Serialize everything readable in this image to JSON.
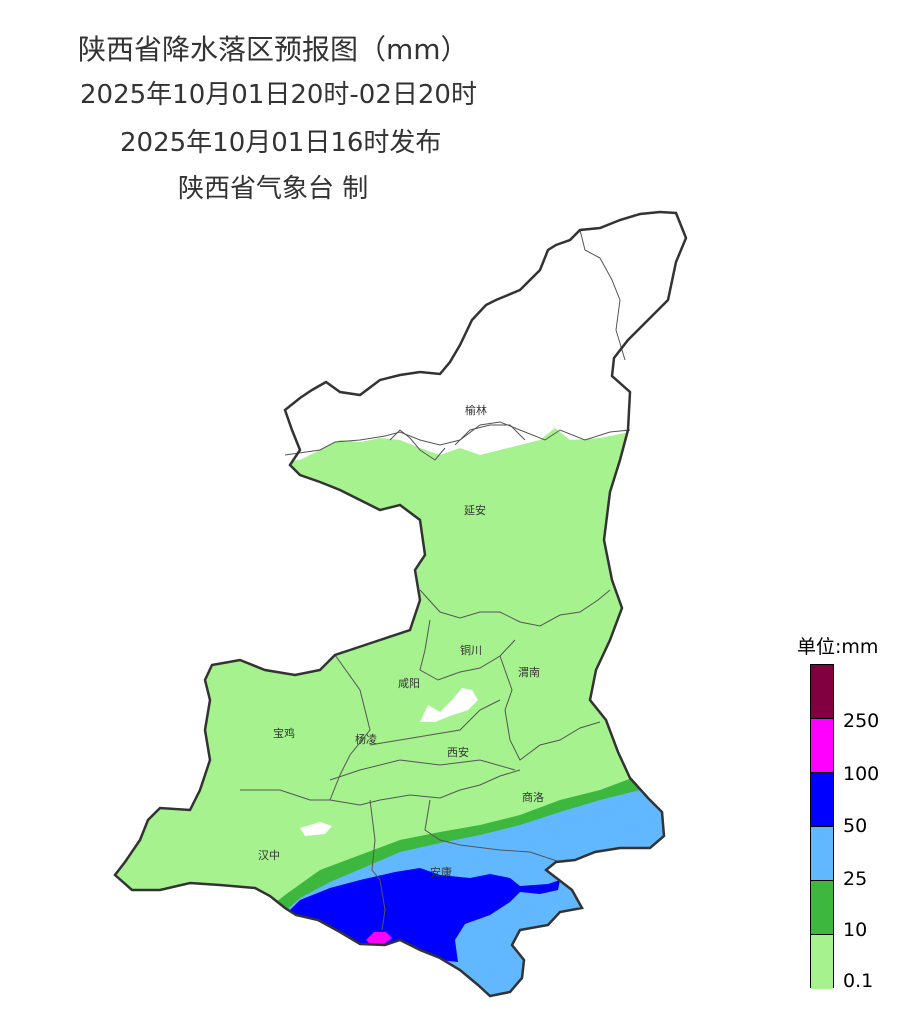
{
  "header": {
    "title": "陕西省降水落区预报图（mm）",
    "period": "2025年10月01日20时-02日20时",
    "issued": "2025年10月01日16时发布",
    "producer": "陕西省气象台 制"
  },
  "cities": {
    "yulin": "榆林",
    "yanan": "延安",
    "tongchuan": "铜川",
    "xianyang": "咸阳",
    "weinan": "渭南",
    "baoji": "宝鸡",
    "yangling": "杨凌",
    "xian": "西安",
    "shangluo": "商洛",
    "hanzhong": "汉中",
    "ankang": "安康"
  },
  "legend": {
    "title": "单位:mm",
    "labels": [
      "250",
      "100",
      "50",
      "25",
      "10",
      "0.1"
    ],
    "colors": [
      "#800040",
      "#ff00ff",
      "#0000ff",
      "#62b8ff",
      "#3db73d",
      "#a6f28f"
    ]
  },
  "colors": {
    "light_rain": "#a6f28f",
    "moderate": "#3db73d",
    "heavy": "#62b8ff",
    "rainstorm": "#0000ff",
    "heavy_rainstorm": "#ff00ff",
    "no_rain": "#ffffff",
    "border": "#333333"
  }
}
